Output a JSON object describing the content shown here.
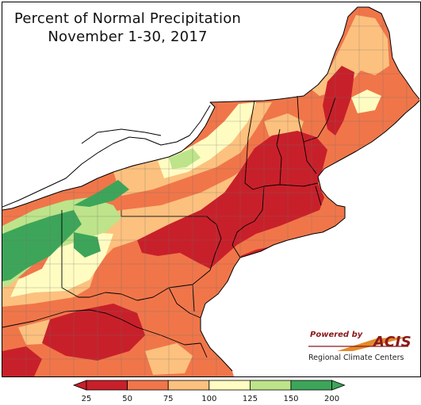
{
  "title": {
    "line1": "Percent of Normal Precipitation",
    "line2": "November 1-30, 2017"
  },
  "logo": {
    "powered_by": "Powered by",
    "name": "ACIS",
    "subtitle": "Regional Climate Centers"
  },
  "legend": {
    "ticks": [
      "25",
      "50",
      "75",
      "100",
      "125",
      "150",
      "200"
    ],
    "colors": [
      "#c8202a",
      "#f0764a",
      "#fcc17e",
      "#fffcc2",
      "#bde48a",
      "#3da55a"
    ],
    "arrow_low_color": "#c8202a",
    "arrow_high_color": "#3da55a"
  },
  "palette": {
    "very_dry": "#c8202a",
    "dry": "#f0764a",
    "slightly_dry": "#fcc17e",
    "near_normal": "#fffcc2",
    "slightly_wet": "#bde48a",
    "wet": "#3da55a"
  }
}
